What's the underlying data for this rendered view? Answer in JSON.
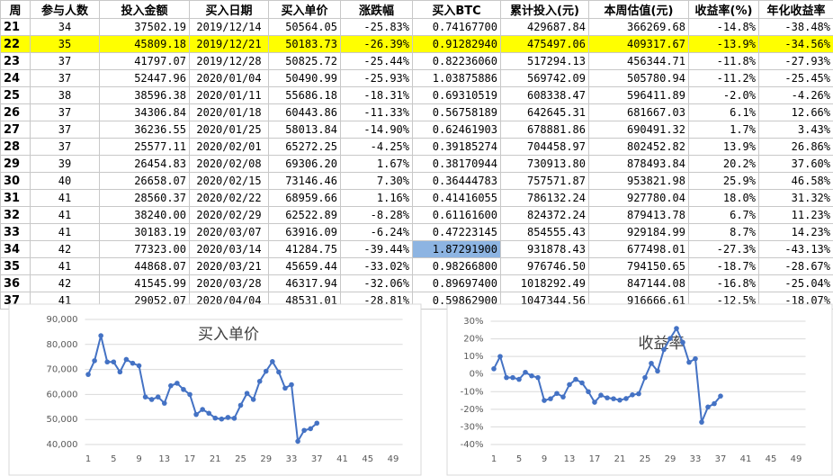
{
  "table": {
    "header": [
      "周",
      "参与人数",
      "投入金额",
      "买入日期",
      "买入单价",
      "涨跌幅",
      "买入BTC",
      "累计投入(元)",
      "本周估值(元)",
      "收益率(%)",
      "年化收益率"
    ],
    "rows": [
      [
        "21",
        "34",
        "37502.19",
        "2019/12/14",
        "50564.05",
        "-25.83%",
        "0.74167700",
        "429687.84",
        "366269.68",
        "-14.8%",
        "-38.48%"
      ],
      [
        "22",
        "35",
        "45809.18",
        "2019/12/21",
        "50183.73",
        "-26.39%",
        "0.91282940",
        "475497.06",
        "409317.67",
        "-13.9%",
        "-34.56%"
      ],
      [
        "23",
        "37",
        "41797.07",
        "2019/12/28",
        "50825.72",
        "-25.44%",
        "0.82236060",
        "517294.13",
        "456344.71",
        "-11.8%",
        "-27.93%"
      ],
      [
        "24",
        "37",
        "52447.96",
        "2020/01/04",
        "50490.99",
        "-25.93%",
        "1.03875886",
        "569742.09",
        "505780.94",
        "-11.2%",
        "-25.45%"
      ],
      [
        "25",
        "38",
        "38596.38",
        "2020/01/11",
        "55686.18",
        "-18.31%",
        "0.69310519",
        "608338.47",
        "596411.89",
        "-2.0%",
        "-4.26%"
      ],
      [
        "26",
        "37",
        "34306.84",
        "2020/01/18",
        "60443.86",
        "-11.33%",
        "0.56758189",
        "642645.31",
        "681667.03",
        "6.1%",
        "12.66%"
      ],
      [
        "27",
        "37",
        "36236.55",
        "2020/01/25",
        "58013.84",
        "-14.90%",
        "0.62461903",
        "678881.86",
        "690491.32",
        "1.7%",
        "3.43%"
      ],
      [
        "28",
        "37",
        "25577.11",
        "2020/02/01",
        "65272.25",
        "-4.25%",
        "0.39185274",
        "704458.97",
        "802452.82",
        "13.9%",
        "26.86%"
      ],
      [
        "29",
        "39",
        "26454.83",
        "2020/02/08",
        "69306.20",
        "1.67%",
        "0.38170944",
        "730913.80",
        "878493.84",
        "20.2%",
        "37.60%"
      ],
      [
        "30",
        "40",
        "26658.07",
        "2020/02/15",
        "73146.46",
        "7.30%",
        "0.36444783",
        "757571.87",
        "953821.98",
        "25.9%",
        "46.58%"
      ],
      [
        "31",
        "41",
        "28560.37",
        "2020/02/22",
        "68959.66",
        "1.16%",
        "0.41416055",
        "786132.24",
        "927780.04",
        "18.0%",
        "31.32%"
      ],
      [
        "32",
        "41",
        "38240.00",
        "2020/02/29",
        "62522.89",
        "-8.28%",
        "0.61161600",
        "824372.24",
        "879413.78",
        "6.7%",
        "11.23%"
      ],
      [
        "33",
        "41",
        "30183.19",
        "2020/03/07",
        "63916.09",
        "-6.24%",
        "0.47223145",
        "854555.43",
        "929184.99",
        "8.7%",
        "14.23%"
      ],
      [
        "34",
        "42",
        "77323.00",
        "2020/03/14",
        "41284.75",
        "-39.44%",
        "1.87291900",
        "931878.43",
        "677498.01",
        "-27.3%",
        "-43.13%"
      ],
      [
        "35",
        "41",
        "44868.07",
        "2020/03/21",
        "45659.44",
        "-33.02%",
        "0.98266800",
        "976746.50",
        "794150.65",
        "-18.7%",
        "-28.67%"
      ],
      [
        "36",
        "42",
        "41545.99",
        "2020/03/28",
        "46317.94",
        "-32.06%",
        "0.89697400",
        "1018292.49",
        "847144.08",
        "-16.8%",
        "-25.04%"
      ],
      [
        "37",
        "41",
        "29052.07",
        "2020/04/04",
        "48531.01",
        "-28.81%",
        "0.59862900",
        "1047344.56",
        "916666.61",
        "-12.5%",
        "-18.07%"
      ]
    ]
  },
  "chart_data": [
    {
      "type": "line",
      "title": "买入单价",
      "color": "#4472c4",
      "grid": true,
      "x": [
        1,
        2,
        3,
        4,
        5,
        6,
        7,
        8,
        9,
        10,
        11,
        12,
        13,
        14,
        15,
        16,
        17,
        18,
        19,
        20,
        21,
        22,
        23,
        24,
        25,
        26,
        27,
        28,
        29,
        30,
        31,
        32,
        33,
        34,
        35,
        36,
        37
      ],
      "values": [
        68000,
        73500,
        83500,
        73000,
        73000,
        69000,
        74000,
        72500,
        71500,
        59000,
        58000,
        59000,
        56500,
        63500,
        64500,
        62000,
        60000,
        52000,
        54000,
        52500,
        50564.05,
        50183.73,
        50825.72,
        50490.99,
        55686.18,
        60443.86,
        58013.84,
        65272.25,
        69306.2,
        73146.46,
        68959.66,
        62522.89,
        63916.09,
        41284.75,
        45659.44,
        46317.94,
        48531.01
      ],
      "xlim": [
        0.5,
        50.5
      ],
      "xticks": [
        1,
        5,
        9,
        13,
        17,
        21,
        25,
        29,
        33,
        37,
        41,
        45,
        49
      ],
      "ylim": [
        40000,
        90000
      ],
      "yticks": [
        {
          "value": 40000,
          "label": "40,000"
        },
        {
          "value": 50000,
          "label": "50,000"
        },
        {
          "value": 60000,
          "label": "60,000"
        },
        {
          "value": 70000,
          "label": "70,000"
        },
        {
          "value": 80000,
          "label": "80,000"
        },
        {
          "value": 90000,
          "label": "90,000"
        }
      ]
    },
    {
      "type": "line",
      "title": "收益率",
      "color": "#4472c4",
      "grid": true,
      "x": [
        1,
        2,
        3,
        4,
        5,
        6,
        7,
        8,
        9,
        10,
        11,
        12,
        13,
        14,
        15,
        16,
        17,
        18,
        19,
        20,
        21,
        22,
        23,
        24,
        25,
        26,
        27,
        28,
        29,
        30,
        31,
        32,
        33,
        34,
        35,
        36,
        37
      ],
      "values": [
        3,
        10,
        -2,
        -2,
        -3,
        1,
        -1,
        -2,
        -15,
        -14,
        -11,
        -13,
        -6,
        -3,
        -5,
        -10,
        -16,
        -12,
        -13.5,
        -14,
        -14.8,
        -13.9,
        -11.8,
        -11.2,
        -2.0,
        6.1,
        1.7,
        13.9,
        20.2,
        25.9,
        18.0,
        6.7,
        8.7,
        -27.3,
        -18.7,
        -16.8,
        -12.5
      ],
      "xlim": [
        0.5,
        50.5
      ],
      "xticks": [
        1,
        5,
        9,
        13,
        17,
        21,
        25,
        29,
        33,
        37,
        41,
        45,
        49
      ],
      "ylim": [
        -40,
        30
      ],
      "yticks": [
        {
          "value": -40,
          "label": "-40%"
        },
        {
          "value": -30,
          "label": "-30%"
        },
        {
          "value": -20,
          "label": "-20%"
        },
        {
          "value": -10,
          "label": "-10%"
        },
        {
          "value": 0,
          "label": "0%"
        },
        {
          "value": 10,
          "label": "10%"
        },
        {
          "value": 20,
          "label": "20%"
        },
        {
          "value": 30,
          "label": "30%"
        }
      ]
    }
  ]
}
